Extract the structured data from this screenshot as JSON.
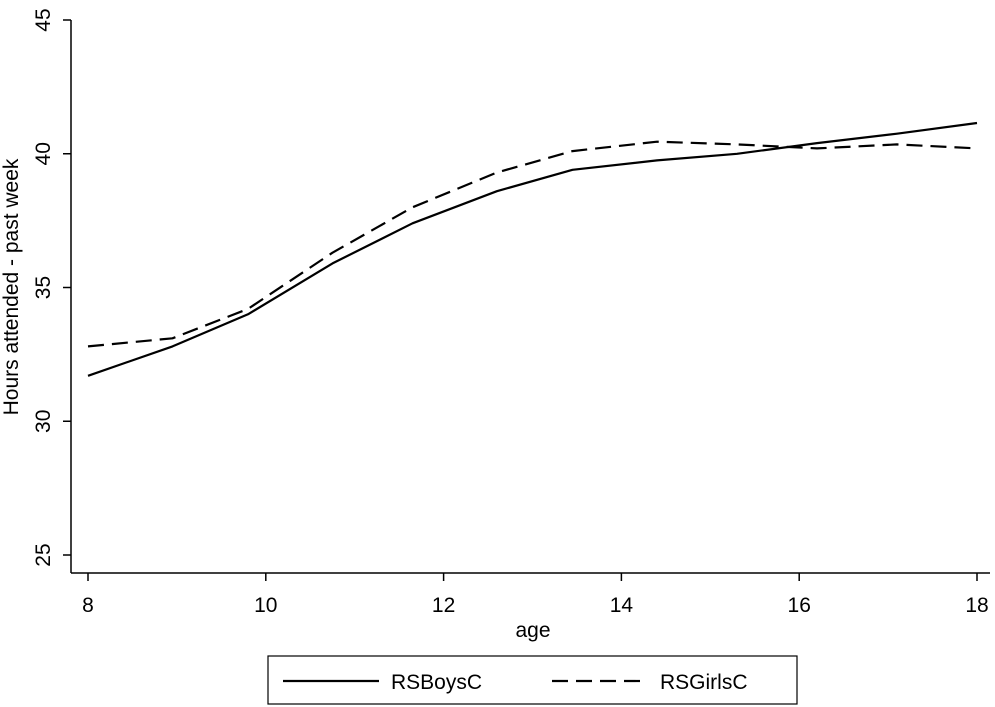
{
  "chart_data": {
    "type": "line",
    "title": "",
    "xlabel": "age",
    "ylabel": "Hours attended - past week",
    "xlim": [
      8,
      18
    ],
    "ylim": [
      25,
      45
    ],
    "x_ticks": [
      "8",
      "10",
      "12",
      "14",
      "16",
      "18"
    ],
    "y_ticks": [
      "25",
      "30",
      "35",
      "40",
      "45"
    ],
    "grid": false,
    "legend_position": "bottom",
    "series": [
      {
        "name": "RSBoysC",
        "style": "solid",
        "color": "#000000",
        "points": [
          [
            8,
            31.7
          ],
          [
            8.95,
            32.8
          ],
          [
            9.8,
            34.0
          ],
          [
            10.75,
            35.9
          ],
          [
            11.65,
            37.4
          ],
          [
            12.6,
            38.6
          ],
          [
            13.45,
            39.4
          ],
          [
            14.4,
            39.75
          ],
          [
            15.3,
            40.0
          ],
          [
            16.2,
            40.4
          ],
          [
            17.1,
            40.75
          ],
          [
            18,
            41.15
          ]
        ]
      },
      {
        "name": "RSGirlsC",
        "style": "dashed",
        "color": "#000000",
        "points": [
          [
            8,
            32.8
          ],
          [
            8.95,
            33.1
          ],
          [
            9.8,
            34.2
          ],
          [
            10.75,
            36.3
          ],
          [
            11.65,
            38.0
          ],
          [
            12.6,
            39.3
          ],
          [
            13.45,
            40.1
          ],
          [
            14.4,
            40.45
          ],
          [
            15.3,
            40.35
          ],
          [
            16.2,
            40.2
          ],
          [
            17.1,
            40.35
          ],
          [
            18,
            40.2
          ]
        ]
      }
    ]
  }
}
